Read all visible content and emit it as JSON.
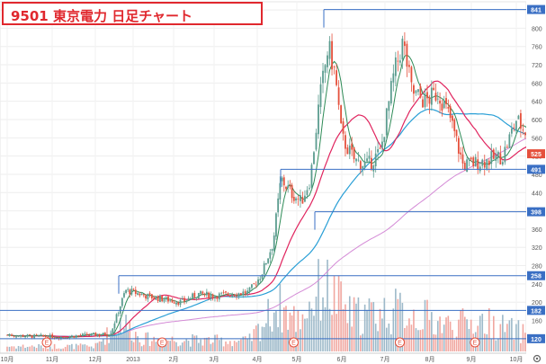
{
  "title": "9501 東京電力 日足チャート",
  "colors": {
    "up": "#5b9c8f",
    "down": "#e5503c",
    "vol_up": "#9db9c9",
    "vol_down": "#f1a7a0",
    "ma_short": "#2e8b57",
    "ma_mid": "#e0245e",
    "ma_long": "#2a9fd6",
    "ma_longest": "#d48ad6",
    "hline": "#3a6fc4",
    "tag_hline": "#3a6fc4",
    "tag_current": "#e5503c"
  },
  "chart_data": {
    "type": "candlestick",
    "title": "9501 東京電力 日足チャート",
    "y_axis": {
      "position": "right",
      "range": [
        100,
        850
      ],
      "ticks": [
        "840",
        "800",
        "760",
        "720",
        "680",
        "640",
        "600",
        "560",
        "520",
        "480",
        "440",
        "400",
        "360",
        "320",
        "280",
        "240",
        "200",
        "160",
        "120"
      ]
    },
    "x_axis": {
      "ticks": [
        "10月",
        "11月",
        "12月",
        "2013",
        "2月",
        "3月",
        "4月",
        "5月",
        "6月",
        "7月",
        "8月",
        "9月",
        "10月"
      ]
    },
    "horizontal_lines": [
      {
        "label": "841",
        "value": 841
      },
      {
        "label": "491",
        "value": 491
      },
      {
        "label": "398",
        "value": 398
      },
      {
        "label": "258",
        "value": 258
      },
      {
        "label": "182",
        "value": 182
      },
      {
        "label": "120",
        "value": 120
      }
    ],
    "current_price_tag": {
      "label": "525",
      "value": 525
    },
    "earnings_markers": [
      "E",
      "E",
      "E",
      "E",
      "E"
    ],
    "price_keyframes": [
      {
        "m": 0,
        "p": 128
      },
      {
        "m": 0.6,
        "p": 125
      },
      {
        "m": 1.2,
        "p": 124
      },
      {
        "m": 1.8,
        "p": 128
      },
      {
        "m": 2.4,
        "p": 130
      },
      {
        "m": 2.8,
        "p": 226
      },
      {
        "m": 3.0,
        "p": 222
      },
      {
        "m": 3.4,
        "p": 212
      },
      {
        "m": 3.8,
        "p": 206
      },
      {
        "m": 4.2,
        "p": 200
      },
      {
        "m": 4.6,
        "p": 218
      },
      {
        "m": 5.0,
        "p": 214
      },
      {
        "m": 5.4,
        "p": 218
      },
      {
        "m": 5.8,
        "p": 222
      },
      {
        "m": 6.1,
        "p": 260
      },
      {
        "m": 6.4,
        "p": 330
      },
      {
        "m": 6.6,
        "p": 470
      },
      {
        "m": 6.85,
        "p": 440
      },
      {
        "m": 7.1,
        "p": 420
      },
      {
        "m": 7.3,
        "p": 470
      },
      {
        "m": 7.5,
        "p": 640
      },
      {
        "m": 7.7,
        "p": 760
      },
      {
        "m": 7.85,
        "p": 700
      },
      {
        "m": 8.0,
        "p": 560
      },
      {
        "m": 8.3,
        "p": 510
      },
      {
        "m": 8.6,
        "p": 500
      },
      {
        "m": 8.9,
        "p": 530
      },
      {
        "m": 9.2,
        "p": 700
      },
      {
        "m": 9.4,
        "p": 770
      },
      {
        "m": 9.6,
        "p": 660
      },
      {
        "m": 9.9,
        "p": 640
      },
      {
        "m": 10.2,
        "p": 660
      },
      {
        "m": 10.5,
        "p": 600
      },
      {
        "m": 10.8,
        "p": 500
      },
      {
        "m": 11.1,
        "p": 505
      },
      {
        "m": 11.4,
        "p": 512
      },
      {
        "m": 11.7,
        "p": 520
      },
      {
        "m": 12.0,
        "p": 600
      },
      {
        "m": 12.3,
        "p": 560
      },
      {
        "m": 12.5,
        "p": 525
      }
    ],
    "volume_keyframes": [
      {
        "m": 0,
        "v": 0.05
      },
      {
        "m": 2.0,
        "v": 0.05
      },
      {
        "m": 2.7,
        "v": 0.3
      },
      {
        "m": 3.2,
        "v": 0.12
      },
      {
        "m": 5.8,
        "v": 0.1
      },
      {
        "m": 6.5,
        "v": 0.45
      },
      {
        "m": 7.0,
        "v": 0.3
      },
      {
        "m": 7.6,
        "v": 0.65
      },
      {
        "m": 8.2,
        "v": 0.35
      },
      {
        "m": 9.4,
        "v": 0.4
      },
      {
        "m": 10.5,
        "v": 0.25
      },
      {
        "m": 11.2,
        "v": 0.3
      },
      {
        "m": 12.0,
        "v": 0.2
      },
      {
        "m": 12.5,
        "v": 0.15
      }
    ]
  }
}
